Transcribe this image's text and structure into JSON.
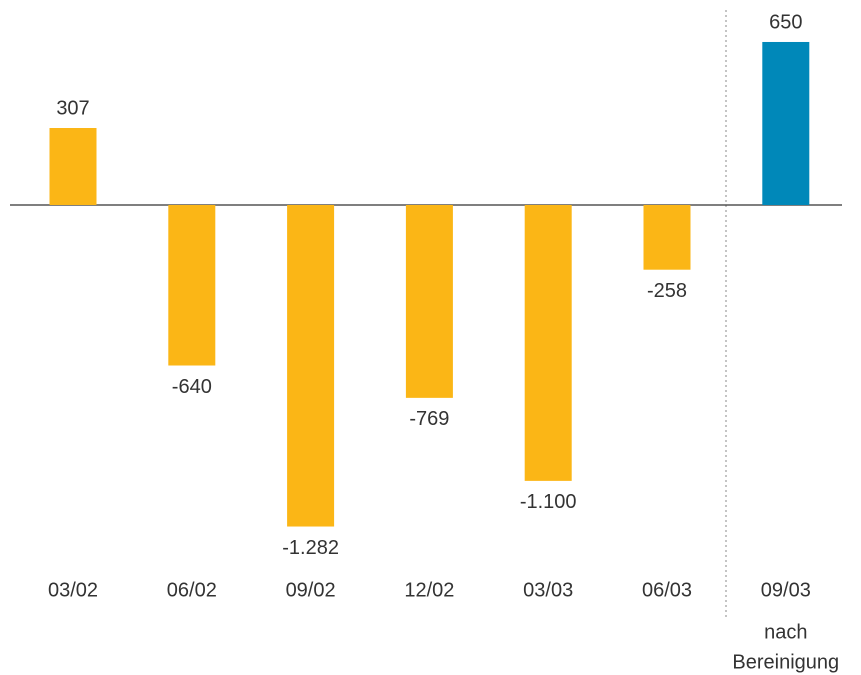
{
  "chart_data": {
    "type": "bar",
    "categories": [
      "03/02",
      "06/02",
      "09/02",
      "12/02",
      "03/03",
      "06/03",
      "09/03"
    ],
    "values": [
      307,
      -640,
      -1282,
      -769,
      -1100,
      -258,
      650
    ],
    "value_labels": [
      "307",
      "-640",
      "-1.282",
      "-769",
      "-1.100",
      "-258",
      "650"
    ],
    "colors": [
      "#fbb616",
      "#fbb616",
      "#fbb616",
      "#fbb616",
      "#fbb616",
      "#fbb616",
      "#0088b9"
    ],
    "annotation": [
      "nach",
      "Bereinigung"
    ]
  }
}
